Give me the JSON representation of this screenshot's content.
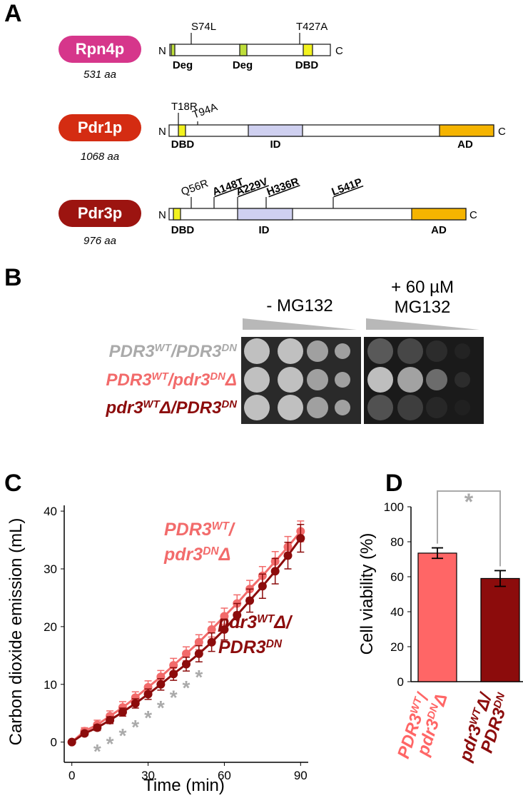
{
  "panel_labels": [
    "A",
    "B",
    "C",
    "D"
  ],
  "panel_a": {
    "proteins": [
      {
        "name": "Rpn4p",
        "length": "531 aa",
        "color": "#d6368b",
        "mutations": [
          "S74L",
          "T427A"
        ],
        "domain_labels": [
          "Deg",
          "Deg",
          "DBD"
        ]
      },
      {
        "name": "Pdr1p",
        "length": "1068 aa",
        "color": "#d42c12",
        "mutations": [
          "T18R",
          "T94A"
        ],
        "domain_labels": [
          "DBD",
          "ID",
          "AD"
        ]
      },
      {
        "name": "Pdr3p",
        "length": "976 aa",
        "color": "#9c1410",
        "mutations": [
          "Q56R",
          "A148T",
          "A229V",
          "H336R",
          "L541P"
        ],
        "domain_labels": [
          "DBD",
          "ID",
          "AD"
        ]
      }
    ],
    "terminus_labels": [
      "N",
      "C"
    ]
  },
  "panel_b": {
    "conditions": [
      "- MG132",
      [
        "+ 60 µM",
        "MG132"
      ]
    ],
    "strains": [
      {
        "label": [
          "PDR3",
          "WT",
          "/PDR3",
          "DN"
        ],
        "color": "#aaaaaa"
      },
      {
        "label": [
          "PDR3",
          "WT",
          "/pdr3",
          "DN",
          "Δ"
        ],
        "color": "#f26b6b"
      },
      {
        "label": [
          "pdr3",
          "WT",
          "Δ/PDR3",
          "DN"
        ],
        "color": "#8c0c0c"
      }
    ]
  },
  "chart_data": [
    {
      "type": "line",
      "x_label": "Time (min)",
      "y_label": "Carbon dioxide emission (mL)",
      "x": [
        0,
        5,
        10,
        15,
        20,
        25,
        30,
        35,
        40,
        45,
        50,
        55,
        60,
        65,
        70,
        75,
        80,
        85,
        90
      ],
      "xlim": [
        -3,
        93
      ],
      "ylim": [
        -3.5,
        41
      ],
      "xticks": [
        0,
        30,
        60,
        90
      ],
      "yticks": [
        0,
        10,
        20,
        30,
        40
      ],
      "series": [
        {
          "name": [
            [
              "PDR3",
              "WT",
              "/"
            ],
            [
              "pdr3",
              "DN",
              "Δ"
            ]
          ],
          "color": "#f26b6b",
          "values": [
            0,
            1.9,
            3,
            4.5,
            6,
            7.7,
            9.5,
            11.3,
            13.3,
            15.3,
            17.3,
            19.5,
            21.8,
            24,
            26.5,
            28.8,
            31.3,
            33.8,
            36.5
          ],
          "errors": [
            0.3,
            0.6,
            0.8,
            0.9,
            1,
            1,
            1.1,
            1.1,
            1.2,
            1.2,
            1.3,
            1.3,
            1.4,
            1.5,
            1.5,
            1.6,
            1.7,
            1.8,
            1.8
          ]
        },
        {
          "name": [
            [
              "pdr3",
              "WT",
              "Δ/"
            ],
            [
              "PDR3",
              "DN"
            ]
          ],
          "color": "#8c0c0c",
          "values": [
            0,
            1.5,
            2.5,
            3.8,
            5.2,
            6.7,
            8.3,
            10,
            11.8,
            13.5,
            15.3,
            17.3,
            19.5,
            22,
            24.5,
            27,
            29.6,
            32.3,
            35.3
          ],
          "errors": [
            0.2,
            0.4,
            0.5,
            0.6,
            0.7,
            0.8,
            0.9,
            1,
            1.1,
            1.2,
            1.4,
            1.6,
            1.8,
            2,
            2,
            2.1,
            2.2,
            2.3,
            2.4
          ]
        }
      ],
      "annotation": {
        "label": "*",
        "color": "#aaaaaa",
        "x": [
          10,
          15,
          20,
          25,
          30,
          35,
          40,
          45,
          50
        ]
      }
    },
    {
      "type": "bar",
      "y_label": "Cell viability (%)",
      "categories": [
        [
          [
            "PDR3",
            "WT",
            "/"
          ],
          [
            "pdr3",
            "DN",
            "Δ"
          ]
        ],
        [
          [
            "pdr3",
            "WT",
            "Δ/"
          ],
          [
            "PDR3",
            "DN"
          ]
        ]
      ],
      "values": [
        73.5,
        59
      ],
      "errors": [
        3,
        4.5
      ],
      "colors": [
        "#ff6666",
        "#8c0c0c"
      ],
      "ylim": [
        0,
        100
      ],
      "yticks": [
        0,
        20,
        40,
        60,
        80,
        100
      ],
      "significance": {
        "label": "*",
        "color": "#aaaaaa"
      }
    }
  ]
}
